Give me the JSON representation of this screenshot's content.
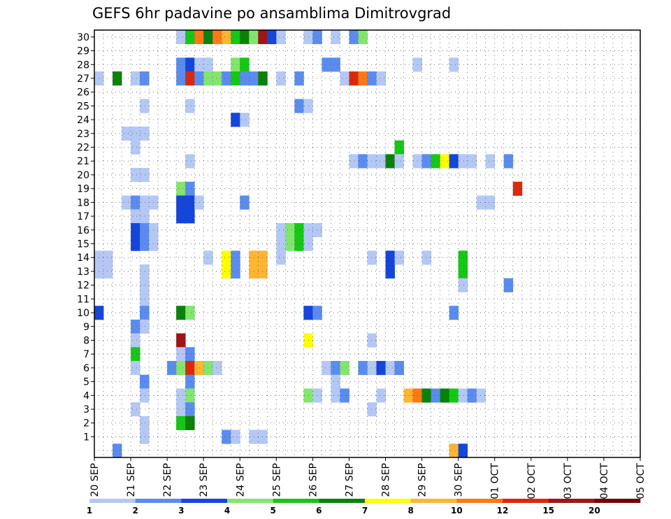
{
  "chart_data": {
    "type": "heatmap",
    "title": "GEFS 6hr padavine po ansamblima Dimitrovgrad",
    "xlabel": "",
    "ylabel": "",
    "y_ticks": [
      1,
      2,
      3,
      4,
      5,
      6,
      7,
      8,
      9,
      10,
      11,
      12,
      13,
      14,
      15,
      16,
      17,
      18,
      19,
      20,
      21,
      22,
      23,
      24,
      25,
      26,
      27,
      28,
      29,
      30
    ],
    "ylim": [
      0,
      30
    ],
    "x_ticks": [
      "20 SEP",
      "21 SEP",
      "22 SEP",
      "23 SEP",
      "24 SEP",
      "25 SEP",
      "26 SEP",
      "27 SEP",
      "28 SEP",
      "29 SEP",
      "30 SEP",
      "01 OCT",
      "02 OCT",
      "03 OCT",
      "04 OCT",
      "05 OCT"
    ],
    "time_steps_per_day": 4,
    "xlim_steps": [
      0,
      60
    ],
    "grid": true,
    "legend": {
      "position": "bottom",
      "labels": [
        "1",
        "2",
        "3",
        "4",
        "5",
        "6",
        "7",
        "8",
        "10",
        "12",
        "15",
        "20"
      ],
      "colors": [
        "#b4c8f5",
        "#5a8cf0",
        "#1446dc",
        "#82e66e",
        "#14c814",
        "#0a820a",
        "#ffff00",
        "#ffb432",
        "#ff7814",
        "#dc280a",
        "#a01414",
        "#780000"
      ]
    },
    "cells": [
      [
        30,
        9,
        "#b4c8f5"
      ],
      [
        30,
        10,
        "#14c814"
      ],
      [
        30,
        11,
        "#ff7814"
      ],
      [
        30,
        12,
        "#0a820a"
      ],
      [
        30,
        13,
        "#ff7814"
      ],
      [
        30,
        14,
        "#ffb432"
      ],
      [
        30,
        15,
        "#14c814"
      ],
      [
        30,
        16,
        "#0a820a"
      ],
      [
        30,
        17,
        "#82e66e"
      ],
      [
        30,
        18,
        "#a01414"
      ],
      [
        30,
        19,
        "#1446dc"
      ],
      [
        30,
        20,
        "#b4c8f5"
      ],
      [
        30,
        23,
        "#b4c8f5"
      ],
      [
        30,
        24,
        "#5a8cf0"
      ],
      [
        30,
        26,
        "#b4c8f5"
      ],
      [
        30,
        28,
        "#5a8cf0"
      ],
      [
        30,
        29,
        "#82e66e"
      ],
      [
        28,
        9,
        "#5a8cf0"
      ],
      [
        28,
        10,
        "#1446dc"
      ],
      [
        28,
        11,
        "#b4c8f5"
      ],
      [
        28,
        12,
        "#b4c8f5"
      ],
      [
        28,
        15,
        "#82e66e"
      ],
      [
        28,
        16,
        "#14c814"
      ],
      [
        28,
        25,
        "#5a8cf0"
      ],
      [
        28,
        26,
        "#5a8cf0"
      ],
      [
        28,
        35,
        "#b4c8f5"
      ],
      [
        28,
        39,
        "#b4c8f5"
      ],
      [
        27,
        0,
        "#b4c8f5"
      ],
      [
        27,
        2,
        "#0a820a"
      ],
      [
        27,
        4,
        "#b4c8f5"
      ],
      [
        27,
        5,
        "#5a8cf0"
      ],
      [
        27,
        9,
        "#5a8cf0"
      ],
      [
        27,
        10,
        "#dc280a"
      ],
      [
        27,
        11,
        "#5a8cf0"
      ],
      [
        27,
        12,
        "#82e66e"
      ],
      [
        27,
        13,
        "#82e66e"
      ],
      [
        27,
        14,
        "#5a8cf0"
      ],
      [
        27,
        15,
        "#14c814"
      ],
      [
        27,
        16,
        "#5a8cf0"
      ],
      [
        27,
        17,
        "#5a8cf0"
      ],
      [
        27,
        18,
        "#0a820a"
      ],
      [
        27,
        20,
        "#b4c8f5"
      ],
      [
        27,
        22,
        "#5a8cf0"
      ],
      [
        27,
        27,
        "#b4c8f5"
      ],
      [
        27,
        28,
        "#dc280a"
      ],
      [
        27,
        29,
        "#ff7814"
      ],
      [
        27,
        30,
        "#5a8cf0"
      ],
      [
        27,
        31,
        "#b4c8f5"
      ],
      [
        25,
        5,
        "#b4c8f5"
      ],
      [
        25,
        10,
        "#b4c8f5"
      ],
      [
        25,
        22,
        "#5a8cf0"
      ],
      [
        25,
        23,
        "#b4c8f5"
      ],
      [
        24,
        15,
        "#1446dc"
      ],
      [
        24,
        16,
        "#b4c8f5"
      ],
      [
        23,
        3,
        "#b4c8f5"
      ],
      [
        23,
        4,
        "#b4c8f5"
      ],
      [
        23,
        5,
        "#b4c8f5"
      ],
      [
        22,
        4,
        "#b4c8f5"
      ],
      [
        22,
        33,
        "#14c814"
      ],
      [
        21,
        10,
        "#b4c8f5"
      ],
      [
        21,
        28,
        "#b4c8f5"
      ],
      [
        21,
        29,
        "#5a8cf0"
      ],
      [
        21,
        30,
        "#b4c8f5"
      ],
      [
        21,
        31,
        "#b4c8f5"
      ],
      [
        21,
        32,
        "#0a820a"
      ],
      [
        21,
        33,
        "#b4c8f5"
      ],
      [
        21,
        35,
        "#b4c8f5"
      ],
      [
        21,
        36,
        "#5a8cf0"
      ],
      [
        21,
        37,
        "#14c814"
      ],
      [
        21,
        38,
        "#ffff00"
      ],
      [
        21,
        39,
        "#1446dc"
      ],
      [
        21,
        40,
        "#b4c8f5"
      ],
      [
        21,
        41,
        "#b4c8f5"
      ],
      [
        21,
        43,
        "#b4c8f5"
      ],
      [
        21,
        45,
        "#5a8cf0"
      ],
      [
        20,
        4,
        "#b4c8f5"
      ],
      [
        20,
        5,
        "#b4c8f5"
      ],
      [
        19,
        9,
        "#82e66e"
      ],
      [
        19,
        10,
        "#5a8cf0"
      ],
      [
        19,
        46,
        "#dc280a"
      ],
      [
        18,
        3,
        "#b4c8f5"
      ],
      [
        18,
        4,
        "#5a8cf0"
      ],
      [
        18,
        5,
        "#b4c8f5"
      ],
      [
        18,
        6,
        "#b4c8f5"
      ],
      [
        18,
        9,
        "#1446dc"
      ],
      [
        18,
        10,
        "#1446dc"
      ],
      [
        18,
        11,
        "#b4c8f5"
      ],
      [
        18,
        16,
        "#5a8cf0"
      ],
      [
        18,
        42,
        "#b4c8f5"
      ],
      [
        18,
        43,
        "#b4c8f5"
      ],
      [
        17,
        4,
        "#b4c8f5"
      ],
      [
        17,
        5,
        "#b4c8f5"
      ],
      [
        17,
        9,
        "#1446dc"
      ],
      [
        17,
        10,
        "#1446dc"
      ],
      [
        16,
        4,
        "#1446dc"
      ],
      [
        16,
        5,
        "#5a8cf0"
      ],
      [
        16,
        6,
        "#b4c8f5"
      ],
      [
        16,
        20,
        "#b4c8f5"
      ],
      [
        16,
        21,
        "#82e66e"
      ],
      [
        16,
        22,
        "#14c814"
      ],
      [
        16,
        23,
        "#b4c8f5"
      ],
      [
        16,
        24,
        "#b4c8f5"
      ],
      [
        15,
        4,
        "#1446dc"
      ],
      [
        15,
        5,
        "#5a8cf0"
      ],
      [
        15,
        6,
        "#b4c8f5"
      ],
      [
        15,
        20,
        "#b4c8f5"
      ],
      [
        15,
        21,
        "#82e66e"
      ],
      [
        15,
        22,
        "#14c814"
      ],
      [
        15,
        23,
        "#b4c8f5"
      ],
      [
        14,
        0,
        "#b4c8f5"
      ],
      [
        14,
        1,
        "#b4c8f5"
      ],
      [
        14,
        12,
        "#b4c8f5"
      ],
      [
        14,
        14,
        "#ffff00"
      ],
      [
        14,
        15,
        "#5a8cf0"
      ],
      [
        14,
        17,
        "#ffb432"
      ],
      [
        14,
        18,
        "#ffb432"
      ],
      [
        14,
        20,
        "#b4c8f5"
      ],
      [
        14,
        30,
        "#b4c8f5"
      ],
      [
        14,
        32,
        "#1446dc"
      ],
      [
        14,
        33,
        "#b4c8f5"
      ],
      [
        14,
        36,
        "#b4c8f5"
      ],
      [
        14,
        40,
        "#14c814"
      ],
      [
        13,
        0,
        "#b4c8f5"
      ],
      [
        13,
        1,
        "#b4c8f5"
      ],
      [
        13,
        5,
        "#b4c8f5"
      ],
      [
        13,
        14,
        "#ffff00"
      ],
      [
        13,
        15,
        "#5a8cf0"
      ],
      [
        13,
        17,
        "#ffb432"
      ],
      [
        13,
        18,
        "#ffb432"
      ],
      [
        13,
        32,
        "#1446dc"
      ],
      [
        13,
        40,
        "#14c814"
      ],
      [
        12,
        5,
        "#b4c8f5"
      ],
      [
        12,
        40,
        "#b4c8f5"
      ],
      [
        12,
        45,
        "#5a8cf0"
      ],
      [
        11,
        5,
        "#b4c8f5"
      ],
      [
        10,
        0,
        "#1446dc"
      ],
      [
        10,
        5,
        "#5a8cf0"
      ],
      [
        10,
        9,
        "#0a820a"
      ],
      [
        10,
        10,
        "#82e66e"
      ],
      [
        10,
        23,
        "#1446dc"
      ],
      [
        10,
        24,
        "#5a8cf0"
      ],
      [
        10,
        39,
        "#5a8cf0"
      ],
      [
        9,
        4,
        "#5a8cf0"
      ],
      [
        9,
        5,
        "#b4c8f5"
      ],
      [
        8,
        4,
        "#b4c8f5"
      ],
      [
        8,
        9,
        "#a01414"
      ],
      [
        8,
        23,
        "#ffff00"
      ],
      [
        8,
        30,
        "#b4c8f5"
      ],
      [
        7,
        4,
        "#14c814"
      ],
      [
        7,
        9,
        "#b4c8f5"
      ],
      [
        7,
        10,
        "#5a8cf0"
      ],
      [
        6,
        4,
        "#b4c8f5"
      ],
      [
        6,
        8,
        "#5a8cf0"
      ],
      [
        6,
        9,
        "#82e66e"
      ],
      [
        6,
        10,
        "#dc280a"
      ],
      [
        6,
        11,
        "#ffb432"
      ],
      [
        6,
        12,
        "#82e66e"
      ],
      [
        6,
        13,
        "#b4c8f5"
      ],
      [
        6,
        25,
        "#b4c8f5"
      ],
      [
        6,
        26,
        "#5a8cf0"
      ],
      [
        6,
        27,
        "#82e66e"
      ],
      [
        6,
        29,
        "#5a8cf0"
      ],
      [
        6,
        30,
        "#b4c8f5"
      ],
      [
        6,
        31,
        "#1446dc"
      ],
      [
        6,
        32,
        "#b4c8f5"
      ],
      [
        6,
        33,
        "#5a8cf0"
      ],
      [
        5,
        5,
        "#5a8cf0"
      ],
      [
        5,
        10,
        "#5a8cf0"
      ],
      [
        5,
        26,
        "#b4c8f5"
      ],
      [
        4,
        5,
        "#b4c8f5"
      ],
      [
        4,
        9,
        "#b4c8f5"
      ],
      [
        4,
        10,
        "#82e66e"
      ],
      [
        4,
        23,
        "#82e66e"
      ],
      [
        4,
        24,
        "#b4c8f5"
      ],
      [
        4,
        26,
        "#b4c8f5"
      ],
      [
        4,
        27,
        "#5a8cf0"
      ],
      [
        4,
        31,
        "#b4c8f5"
      ],
      [
        4,
        34,
        "#ffb432"
      ],
      [
        4,
        35,
        "#ff7814"
      ],
      [
        4,
        36,
        "#0a820a"
      ],
      [
        4,
        37,
        "#5a8cf0"
      ],
      [
        4,
        38,
        "#0a820a"
      ],
      [
        4,
        39,
        "#14c814"
      ],
      [
        4,
        40,
        "#b4c8f5"
      ],
      [
        4,
        41,
        "#5a8cf0"
      ],
      [
        4,
        42,
        "#b4c8f5"
      ],
      [
        3,
        4,
        "#b4c8f5"
      ],
      [
        3,
        9,
        "#b4c8f5"
      ],
      [
        3,
        10,
        "#5a8cf0"
      ],
      [
        3,
        30,
        "#b4c8f5"
      ],
      [
        2,
        5,
        "#b4c8f5"
      ],
      [
        2,
        9,
        "#14c814"
      ],
      [
        2,
        10,
        "#0a820a"
      ],
      [
        1,
        5,
        "#b4c8f5"
      ],
      [
        1,
        14,
        "#5a8cf0"
      ],
      [
        1,
        15,
        "#b4c8f5"
      ],
      [
        1,
        17,
        "#b4c8f5"
      ],
      [
        1,
        18,
        "#b4c8f5"
      ],
      [
        0,
        2,
        "#5a8cf0"
      ],
      [
        0,
        39,
        "#ffb432"
      ],
      [
        0,
        40,
        "#1446dc"
      ]
    ]
  }
}
